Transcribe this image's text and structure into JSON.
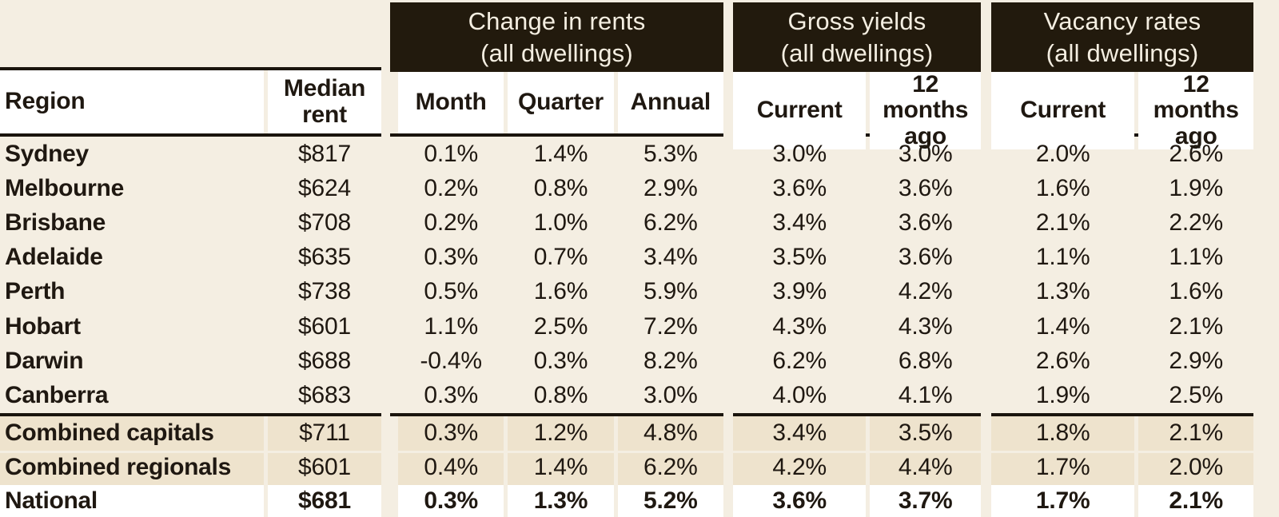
{
  "palette": {
    "background": "#f4eee2",
    "group_header_bg": "#221a0d",
    "group_header_text": "#f4eee1",
    "text": "#1f1811",
    "highlight_row_bg": "#eee3cd",
    "total_row_bg": "#ffffff",
    "rule": "#1a140d"
  },
  "chart_data": {
    "type": "table",
    "header": {
      "region_label": "Region",
      "median_rent_label": "Median rent",
      "groups": [
        {
          "title": "Change in rents",
          "subtitle": "(all dwellings)",
          "columns": [
            "Month",
            "Quarter",
            "Annual"
          ]
        },
        {
          "title": "Gross yields",
          "subtitle": "(all dwellings)",
          "columns": [
            "Current",
            "12 months ago"
          ]
        },
        {
          "title": "Vacancy rates",
          "subtitle": "(all dwellings)",
          "columns": [
            "Current",
            "12 months ago"
          ]
        }
      ]
    },
    "rows": [
      {
        "region": "Sydney",
        "median_rent": "$817",
        "change": [
          "0.1%",
          "1.4%",
          "5.3%"
        ],
        "yields": [
          "3.0%",
          "3.0%"
        ],
        "vacancy": [
          "2.0%",
          "2.6%"
        ],
        "style": "normal"
      },
      {
        "region": "Melbourne",
        "median_rent": "$624",
        "change": [
          "0.2%",
          "0.8%",
          "2.9%"
        ],
        "yields": [
          "3.6%",
          "3.6%"
        ],
        "vacancy": [
          "1.6%",
          "1.9%"
        ],
        "style": "normal"
      },
      {
        "region": "Brisbane",
        "median_rent": "$708",
        "change": [
          "0.2%",
          "1.0%",
          "6.2%"
        ],
        "yields": [
          "3.4%",
          "3.6%"
        ],
        "vacancy": [
          "2.1%",
          "2.2%"
        ],
        "style": "normal"
      },
      {
        "region": "Adelaide",
        "median_rent": "$635",
        "change": [
          "0.3%",
          "0.7%",
          "3.4%"
        ],
        "yields": [
          "3.5%",
          "3.6%"
        ],
        "vacancy": [
          "1.1%",
          "1.1%"
        ],
        "style": "normal"
      },
      {
        "region": "Perth",
        "median_rent": "$738",
        "change": [
          "0.5%",
          "1.6%",
          "5.9%"
        ],
        "yields": [
          "3.9%",
          "4.2%"
        ],
        "vacancy": [
          "1.3%",
          "1.6%"
        ],
        "style": "normal"
      },
      {
        "region": "Hobart",
        "median_rent": "$601",
        "change": [
          "1.1%",
          "2.5%",
          "7.2%"
        ],
        "yields": [
          "4.3%",
          "4.3%"
        ],
        "vacancy": [
          "1.4%",
          "2.1%"
        ],
        "style": "normal"
      },
      {
        "region": "Darwin",
        "median_rent": "$688",
        "change": [
          "-0.4%",
          "0.3%",
          "8.2%"
        ],
        "yields": [
          "6.2%",
          "6.8%"
        ],
        "vacancy": [
          "2.6%",
          "2.9%"
        ],
        "style": "normal"
      },
      {
        "region": "Canberra",
        "median_rent": "$683",
        "change": [
          "0.3%",
          "0.8%",
          "3.0%"
        ],
        "yields": [
          "4.0%",
          "4.1%"
        ],
        "vacancy": [
          "1.9%",
          "2.5%"
        ],
        "style": "normal"
      },
      {
        "region": "Combined capitals",
        "median_rent": "$711",
        "change": [
          "0.3%",
          "1.2%",
          "4.8%"
        ],
        "yields": [
          "3.4%",
          "3.5%"
        ],
        "vacancy": [
          "1.8%",
          "2.1%"
        ],
        "style": "highlight"
      },
      {
        "region": "Combined regionals",
        "median_rent": "$601",
        "change": [
          "0.4%",
          "1.4%",
          "6.2%"
        ],
        "yields": [
          "4.2%",
          "4.4%"
        ],
        "vacancy": [
          "1.7%",
          "2.0%"
        ],
        "style": "highlight"
      },
      {
        "region": "National",
        "median_rent": "$681",
        "change": [
          "0.3%",
          "1.3%",
          "5.2%"
        ],
        "yields": [
          "3.6%",
          "3.7%"
        ],
        "vacancy": [
          "1.7%",
          "2.1%"
        ],
        "style": "total"
      }
    ]
  }
}
